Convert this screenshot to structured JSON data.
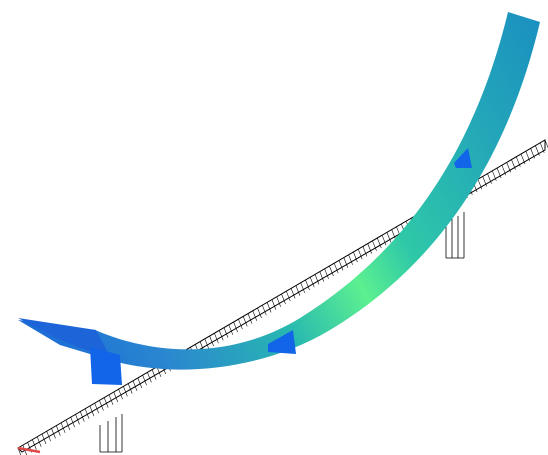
{
  "figure": {
    "colors": {
      "background": "#ffffff",
      "ribbon_light": "#00a8ff",
      "ribbon_mid": "#20b0a0",
      "ribbon_peak": "#60ff80",
      "ribbon_end": "#1898b8",
      "support": "#1060e0",
      "mesh_line": "#000000",
      "mesh_end_tint": "#e05050"
    }
  }
}
